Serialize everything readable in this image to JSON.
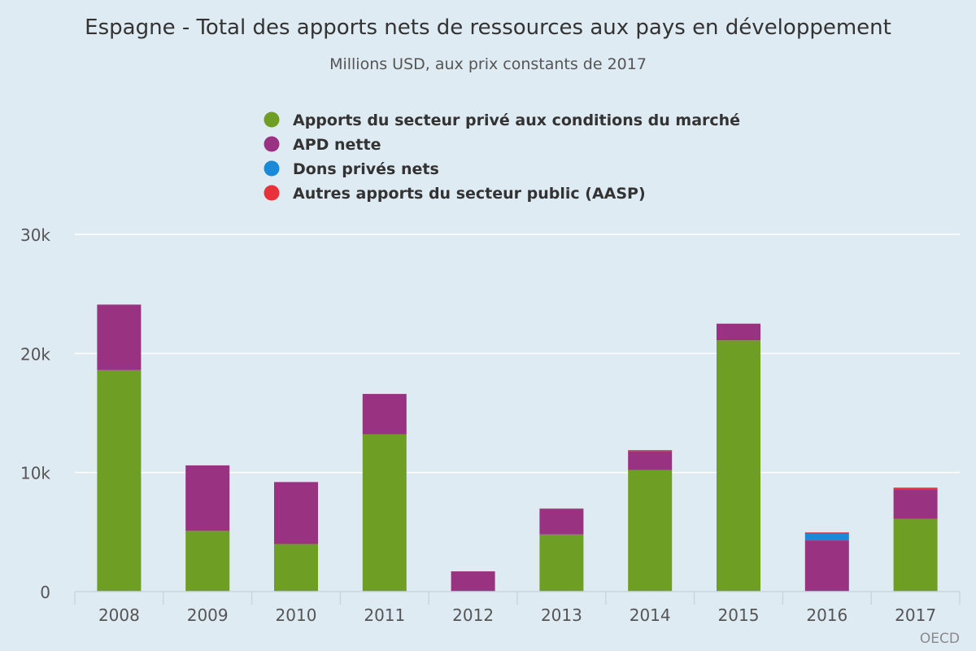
{
  "chart_data": {
    "type": "bar",
    "stacked": true,
    "title": "Espagne - Total des apports nets de ressources aux pays en développement",
    "subtitle": "Millions USD, aux prix constants de 2017",
    "categories": [
      "2008",
      "2009",
      "2010",
      "2011",
      "2012",
      "2013",
      "2014",
      "2015",
      "2016",
      "2017"
    ],
    "series": [
      {
        "name": "Apports du secteur privé aux conditions du marché",
        "color": "#6f9e24",
        "values": [
          18600,
          5100,
          4000,
          13200,
          0,
          4800,
          10200,
          21100,
          0,
          6100
        ]
      },
      {
        "name": "APD nette",
        "color": "#993381",
        "values": [
          5500,
          5500,
          5200,
          3400,
          1700,
          2100,
          1600,
          1400,
          4300,
          2500
        ]
      },
      {
        "name": "Dons privés nets",
        "color": "#1a8ad8",
        "values": [
          0,
          0,
          0,
          0,
          0,
          0,
          0,
          0,
          550,
          0
        ]
      },
      {
        "name": "Autres apports du secteur public (AASP)",
        "color": "#e8313a",
        "values": [
          0,
          0,
          0,
          0,
          0,
          80,
          80,
          0,
          120,
          130
        ]
      }
    ],
    "y_ticks": [
      {
        "value": 0,
        "label": "0"
      },
      {
        "value": 10000,
        "label": "10k"
      },
      {
        "value": 20000,
        "label": "20k"
      },
      {
        "value": 30000,
        "label": "30k"
      }
    ],
    "ylim": [
      0,
      30000
    ],
    "grid": true,
    "legend_position": "top-center",
    "credit": "OECD"
  }
}
